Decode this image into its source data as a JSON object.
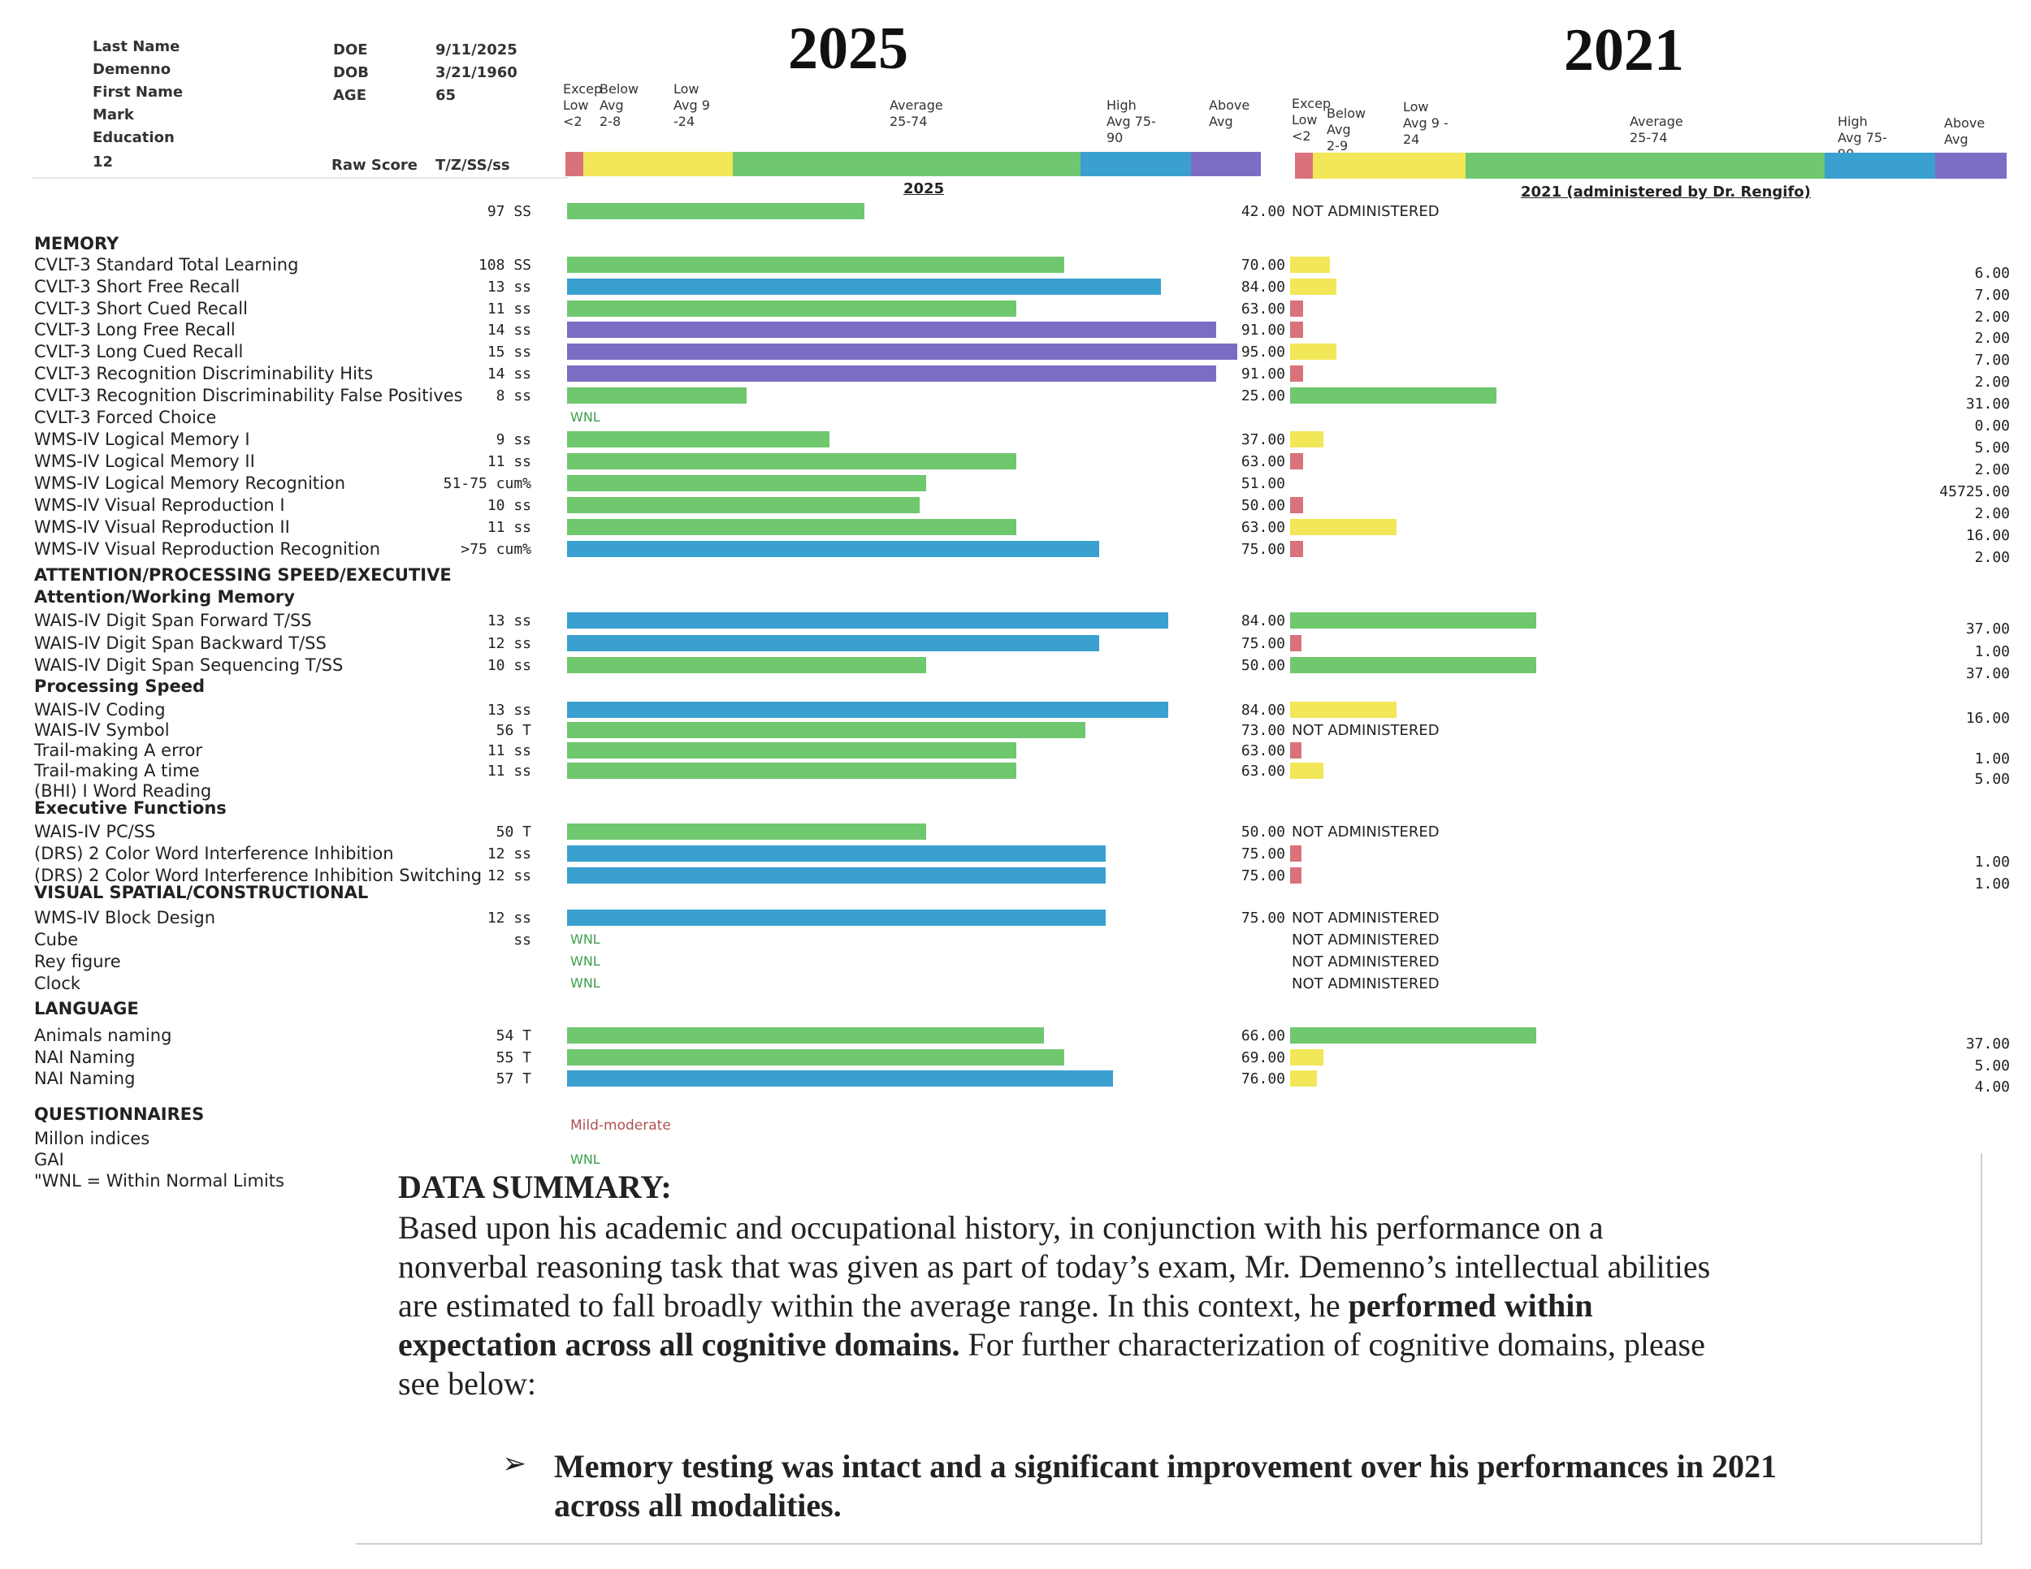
{
  "colors": {
    "exceptionally_low": "#d9727a",
    "below_low": "#f2e659",
    "average": "#6fc76e",
    "high_avg": "#3aa0d0",
    "above_avg": "#7c6cc4",
    "wnl_text": "#3aa04a",
    "mild_text": "#b05050"
  },
  "header": {
    "last_name_label": "Last Name",
    "last_name": "Demenno",
    "first_name_label": "First Name",
    "first_name": "Mark",
    "education_label": "Education",
    "education": "12",
    "doe_label": "DOE",
    "doe": "9/11/2025",
    "dob_label": "DOB",
    "dob": "3/21/1960",
    "age_label": "AGE",
    "age": "65",
    "raw_score_label": "Raw Score",
    "score_type_label": "T/Z/SS/ss"
  },
  "year_2025": {
    "year": "2025",
    "subheading": "2025",
    "scale": {
      "exc_low": "Excep Low <2",
      "below_avg": "Below Avg 2-8",
      "low_avg": "Low Avg 9 -24",
      "average": "Average 25-74",
      "high_avg": "High Avg 75-90",
      "above_avg": "Above Avg"
    }
  },
  "year_2021": {
    "year": "2021",
    "subheading": "2021 (administered by Dr. Rengifo)",
    "scale": {
      "exc_low": "Excep Low <2",
      "below_avg": "Below Avg 2-9",
      "low_avg": "Low Avg 9 - 24",
      "average": "Average 25-74",
      "high_avg": "High Avg 75-90",
      "above_avg": "Above Avg"
    }
  },
  "sections": {
    "memory": "MEMORY",
    "attention": "ATTENTION/PROCESSING SPEED/EXECUTIVE",
    "attention_working": "Attention/Working Memory",
    "processing": "Processing Speed",
    "executive": "Executive Functions",
    "visual": "VISUAL SPATIAL/CONSTRUCTIONAL",
    "language": "LANGUAGE",
    "questionnaires": "QUESTIONNAIRES"
  },
  "rows": [
    {
      "label": "",
      "raw": "97 SS",
      "pct25": 43,
      "c25": "average",
      "v21": "42.00",
      "na21": "NOT ADMINISTERED"
    },
    {
      "label": "CVLT-3 Standard Total Learning",
      "raw": "108 SS",
      "pct25": 72,
      "c25": "average",
      "v21": "70.00",
      "b21": 6,
      "c21": "below_low",
      "far": "6.00"
    },
    {
      "label": "CVLT-3 Short Free Recall",
      "raw": "13 ss",
      "pct25": 86,
      "c25": "high_avg",
      "v21": "84.00",
      "b21": 7,
      "c21": "below_low",
      "far": "7.00"
    },
    {
      "label": "CVLT-3 Short Cued Recall",
      "raw": "11 ss",
      "pct25": 65,
      "c25": "average",
      "v21": "63.00",
      "b21": 2,
      "c21": "exceptionally_low",
      "far": "2.00"
    },
    {
      "label": "CVLT-3 Long Free Recall",
      "raw": "14 ss",
      "pct25": 94,
      "c25": "above_avg",
      "v21": "91.00",
      "b21": 2,
      "c21": "exceptionally_low",
      "far": "2.00"
    },
    {
      "label": "CVLT-3 Long Cued Recall",
      "raw": "15 ss",
      "pct25": 97,
      "c25": "above_avg",
      "v21": "95.00",
      "b21": 7,
      "c21": "below_low",
      "far": "7.00"
    },
    {
      "label": "CVLT-3 Recognition Discriminability Hits",
      "raw": "14 ss",
      "pct25": 94,
      "c25": "above_avg",
      "v21": "91.00",
      "b21": 2,
      "c21": "exceptionally_low",
      "far": "2.00"
    },
    {
      "label": "CVLT-3 Recognition Discriminability False Positives",
      "raw": "8 ss",
      "pct25": 26,
      "c25": "average",
      "v21": "25.00",
      "b21": 31,
      "c21": "average",
      "far": "31.00"
    },
    {
      "label": "CVLT-3 Forced Choice",
      "raw": "",
      "wnl25": "WNL",
      "far": "0.00"
    },
    {
      "label": "WMS-IV Logical Memory I",
      "raw": "9 ss",
      "pct25": 38,
      "c25": "average",
      "v21": "37.00",
      "b21": 5,
      "c21": "below_low",
      "far": "5.00"
    },
    {
      "label": "WMS-IV Logical Memory II",
      "raw": "11 ss",
      "pct25": 65,
      "c25": "average",
      "v21": "63.00",
      "b21": 2,
      "c21": "exceptionally_low",
      "far": "2.00"
    },
    {
      "label": "WMS-IV Logical Memory Recognition",
      "raw": "51-75 cum%",
      "pct25": 52,
      "c25": "average",
      "v21": "51.00",
      "far": "45725.00"
    },
    {
      "label": "WMS-IV Visual Reproduction I",
      "raw": "10 ss",
      "pct25": 51,
      "c25": "average",
      "v21": "50.00",
      "b21": 2,
      "c21": "exceptionally_low",
      "far": "2.00"
    },
    {
      "label": "WMS-IV Visual Reproduction II",
      "raw": "11 ss",
      "pct25": 65,
      "c25": "average",
      "v21": "63.00",
      "b21": 16,
      "c21": "below_low",
      "far": "16.00"
    },
    {
      "label": "WMS-IV Visual Reproduction Recognition",
      "raw": ">75 cum%",
      "pct25": 77,
      "c25": "high_avg",
      "v21": "75.00",
      "b21": 2,
      "c21": "exceptionally_low",
      "far": "2.00"
    },
    {
      "label": "WAIS-IV Digit Span Forward T/SS",
      "raw": "13 ss",
      "pct25": 87,
      "c25": "high_avg",
      "v21": "84.00",
      "b21": 37,
      "c21": "average",
      "far": "37.00"
    },
    {
      "label": "WAIS-IV Digit Span Backward T/SS",
      "raw": "12 ss",
      "pct25": 77,
      "c25": "high_avg",
      "v21": "75.00",
      "b21": 1,
      "c21": "exceptionally_low",
      "far": "1.00"
    },
    {
      "label": "WAIS-IV Digit Span Sequencing T/SS",
      "raw": "10 ss",
      "pct25": 52,
      "c25": "average",
      "v21": "50.00",
      "b21": 37,
      "c21": "average",
      "far": "37.00"
    },
    {
      "label": "WAIS-IV Coding",
      "raw": "13 ss",
      "pct25": 87,
      "c25": "high_avg",
      "v21": "84.00",
      "b21": 16,
      "c21": "below_low",
      "far": "16.00"
    },
    {
      "label": "WAIS-IV Symbol",
      "raw": "56 T",
      "pct25": 75,
      "c25": "average",
      "v21": "73.00",
      "na21": "NOT ADMINISTERED"
    },
    {
      "label": "Trail-making A error",
      "raw": "11 ss",
      "pct25": 65,
      "c25": "average",
      "v21": "63.00",
      "b21": 1,
      "c21": "exceptionally_low",
      "far": "1.00"
    },
    {
      "label": "Trail-making A time",
      "raw": "11 ss",
      "pct25": 65,
      "c25": "average",
      "v21": "63.00",
      "b21": 5,
      "c21": "below_low",
      "far": "5.00"
    },
    {
      "label": "(BHI) I Word Reading",
      "raw": "",
      "pct25": 0,
      "c25": "average"
    },
    {
      "label": "WAIS-IV PC/SS",
      "raw": "50 T",
      "pct25": 52,
      "c25": "average",
      "v21": "50.00",
      "na21": "NOT ADMINISTERED"
    },
    {
      "label": "(DRS) 2 Color Word Interference Inhibition",
      "raw": "12 ss",
      "pct25": 78,
      "c25": "high_avg",
      "v21": "75.00",
      "b21": 1,
      "c21": "exceptionally_low",
      "far": "1.00"
    },
    {
      "label": "(DRS) 2 Color Word Interference Inhibition Switching",
      "raw": "12 ss",
      "pct25": 78,
      "c25": "high_avg",
      "v21": "75.00",
      "b21": 1,
      "c21": "exceptionally_low",
      "far": "1.00"
    },
    {
      "label": "WMS-IV Block Design",
      "raw": "12 ss",
      "pct25": 78,
      "c25": "high_avg",
      "v21": "75.00",
      "na21": "NOT ADMINISTERED"
    },
    {
      "label": "Cube",
      "raw": "ss",
      "wnl25": "WNL",
      "na21": "NOT ADMINISTERED"
    },
    {
      "label": "Rey figure",
      "raw": "",
      "wnl25": "WNL",
      "na21": "NOT ADMINISTERED"
    },
    {
      "label": "Clock",
      "raw": "",
      "wnl25": "WNL",
      "na21": "NOT ADMINISTERED"
    },
    {
      "label": "Animals naming",
      "raw": "54 T",
      "pct25": 69,
      "c25": "average",
      "v21": "66.00",
      "b21": 37,
      "c21": "average",
      "far": "37.00"
    },
    {
      "label": "NAI Naming",
      "raw": "55 T",
      "pct25": 72,
      "c25": "average",
      "v21": "69.00",
      "b21": 5,
      "c21": "below_low",
      "far": "5.00"
    },
    {
      "label": "NAI Naming",
      "raw": "57 T",
      "pct25": 79,
      "c25": "high_avg",
      "v21": "76.00",
      "b21": 4,
      "c21": "below_low",
      "far": "4.00"
    },
    {
      "label": "Millon indices",
      "raw": "",
      "mild25": "Mild-moderate"
    },
    {
      "label": "GAI",
      "raw": "",
      "wnl25": "WNL"
    },
    {
      "label": "\"WNL = Within Normal Limits",
      "raw": ""
    }
  ],
  "summary": {
    "title": "DATA SUMMARY:",
    "p1": "Based upon his academic and occupational history, in conjunction with his performance on a nonverbal reasoning task that was given as part of today’s exam, Mr. Demenno’s intellectual abilities are estimated to fall broadly within the average range. In this context, he ",
    "p1_bold": "performed within expectation across all cognitive domains.",
    "p1_end": " For further characterization of cognitive domains, please see below:",
    "bullet_symbol": "➢",
    "bullet": "Memory testing was intact and a significant improvement over his performances in 2021 across all modalities."
  }
}
